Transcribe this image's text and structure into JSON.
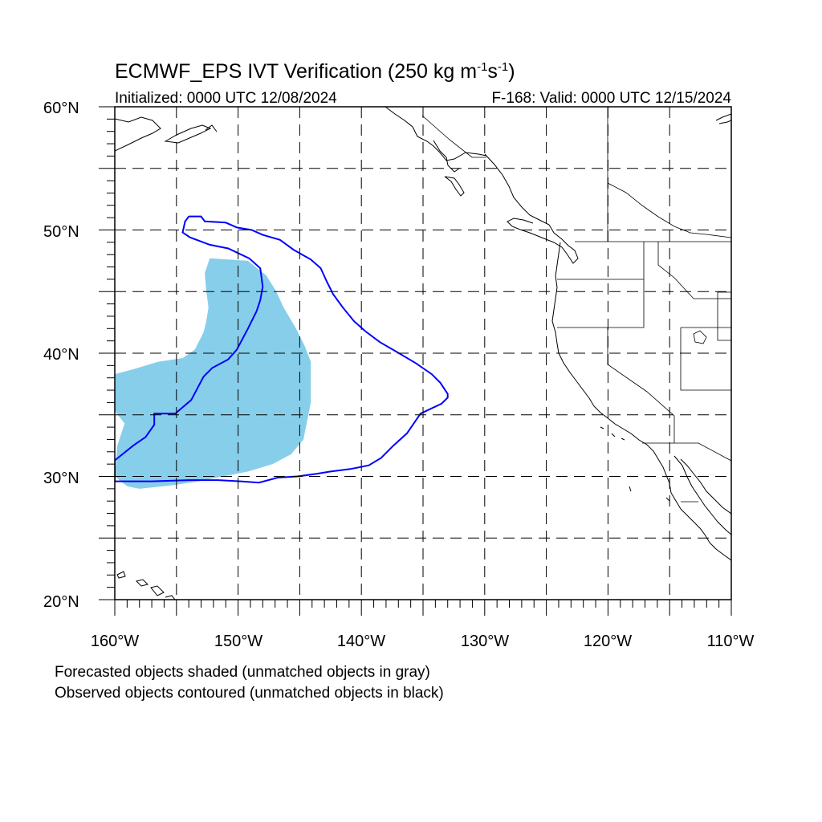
{
  "title": {
    "main": "ECMWF_EPS IVT Verification (250 kg m",
    "exp1": "-1",
    "mid": "s",
    "exp2": "-1",
    "close": ")"
  },
  "subtitle_left": "Initialized: 0000 UTC 12/08/2024",
  "subtitle_right": "F-168: Valid: 0000 UTC 12/15/2024",
  "lat_labels": [
    "60°N",
    "50°N",
    "40°N",
    "30°N",
    "20°N"
  ],
  "lon_labels": [
    "160°W",
    "150°W",
    "140°W",
    "130°W",
    "120°W",
    "110°W"
  ],
  "footer": [
    "Forecasted objects shaded (unmatched objects in gray)",
    "Observed objects contoured (unmatched objects in black)"
  ],
  "colors": {
    "forecast_fill": "#87ceeb",
    "observed_contour": "#0000ff",
    "coast": "#000000",
    "grid": "#000000"
  },
  "map_extent": {
    "lon_min": -160,
    "lon_max": -110,
    "lat_min": 20,
    "lat_max": 60
  },
  "grid_lines": {
    "lon": [
      -155,
      -150,
      -145,
      -140,
      -135,
      -130,
      -125,
      -120,
      -115
    ],
    "lat": [
      25,
      30,
      35,
      40,
      45,
      50,
      55
    ]
  },
  "forecast_object": {
    "name": "forecast-ivt-object",
    "points": [
      [
        -152.3,
        47.7
      ],
      [
        -149.2,
        47.5
      ],
      [
        -147.7,
        46.3
      ],
      [
        -146.9,
        45.0
      ],
      [
        -146.3,
        43.7
      ],
      [
        -145.3,
        42.0
      ],
      [
        -144.6,
        40.6
      ],
      [
        -144.1,
        39.3
      ],
      [
        -144.1,
        36.0
      ],
      [
        -144.7,
        33.0
      ],
      [
        -145.7,
        31.8
      ],
      [
        -147.2,
        31.0
      ],
      [
        -149.2,
        30.4
      ],
      [
        -151.2,
        30.0
      ],
      [
        -153.2,
        29.6
      ],
      [
        -155.2,
        29.3
      ],
      [
        -158.0,
        29.0
      ],
      [
        -159.0,
        29.2
      ],
      [
        -160.0,
        30.0
      ],
      [
        -159.8,
        32.5
      ],
      [
        -159.2,
        34.3
      ],
      [
        -160.0,
        35.3
      ],
      [
        -160.0,
        38.3
      ],
      [
        -158.5,
        38.7
      ],
      [
        -156.5,
        39.3
      ],
      [
        -154.5,
        39.6
      ],
      [
        -153.5,
        40.3
      ],
      [
        -152.8,
        41.7
      ],
      [
        -152.6,
        42.5
      ],
      [
        -152.4,
        43.7
      ],
      [
        -152.6,
        45.2
      ],
      [
        -152.7,
        46.5
      ]
    ]
  },
  "observed_object": {
    "name": "observed-ivt-contour",
    "points": [
      [
        -154.0,
        51.1
      ],
      [
        -153.0,
        51.1
      ],
      [
        -152.7,
        50.7
      ],
      [
        -151.0,
        50.6
      ],
      [
        -150.1,
        50.2
      ],
      [
        -148.9,
        50.0
      ],
      [
        -148.0,
        49.6
      ],
      [
        -146.6,
        49.2
      ],
      [
        -145.5,
        48.4
      ],
      [
        -144.1,
        47.6
      ],
      [
        -143.3,
        46.9
      ],
      [
        -142.8,
        45.8
      ],
      [
        -142.3,
        44.8
      ],
      [
        -141.5,
        43.7
      ],
      [
        -140.6,
        42.6
      ],
      [
        -139.7,
        41.8
      ],
      [
        -138.5,
        40.9
      ],
      [
        -137.3,
        40.2
      ],
      [
        -135.6,
        39.2
      ],
      [
        -134.3,
        38.3
      ],
      [
        -133.6,
        37.6
      ],
      [
        -133.0,
        36.7
      ],
      [
        -133.0,
        36.4
      ],
      [
        -133.5,
        35.9
      ],
      [
        -135.2,
        35.1
      ],
      [
        -136.3,
        33.5
      ],
      [
        -137.4,
        32.5
      ],
      [
        -138.4,
        31.5
      ],
      [
        -139.4,
        30.9
      ],
      [
        -140.9,
        30.6
      ],
      [
        -142.5,
        30.4
      ],
      [
        -143.7,
        30.2
      ],
      [
        -145.2,
        30.0
      ],
      [
        -146.8,
        29.9
      ],
      [
        -148.3,
        29.5
      ],
      [
        -149.8,
        29.6
      ],
      [
        -151.6,
        29.7
      ],
      [
        -154.0,
        29.7
      ],
      [
        -157.0,
        29.6
      ],
      [
        -160.0,
        29.6
      ],
      [
        -160.0,
        31.3
      ],
      [
        -158.5,
        32.5
      ],
      [
        -157.5,
        33.2
      ],
      [
        -156.8,
        34.2
      ],
      [
        -156.8,
        35.1
      ],
      [
        -155.1,
        35.1
      ],
      [
        -153.8,
        36.2
      ],
      [
        -152.8,
        38.1
      ],
      [
        -152.1,
        38.8
      ],
      [
        -150.8,
        39.5
      ],
      [
        -150.1,
        40.3
      ],
      [
        -149.2,
        42.0
      ],
      [
        -148.5,
        43.4
      ],
      [
        -148.2,
        44.3
      ],
      [
        -148.0,
        45.4
      ],
      [
        -148.2,
        46.9
      ],
      [
        -149.1,
        47.7
      ],
      [
        -150.8,
        48.5
      ],
      [
        -152.3,
        48.8
      ],
      [
        -153.9,
        49.4
      ],
      [
        -154.5,
        49.8
      ],
      [
        -154.3,
        50.7
      ]
    ]
  }
}
